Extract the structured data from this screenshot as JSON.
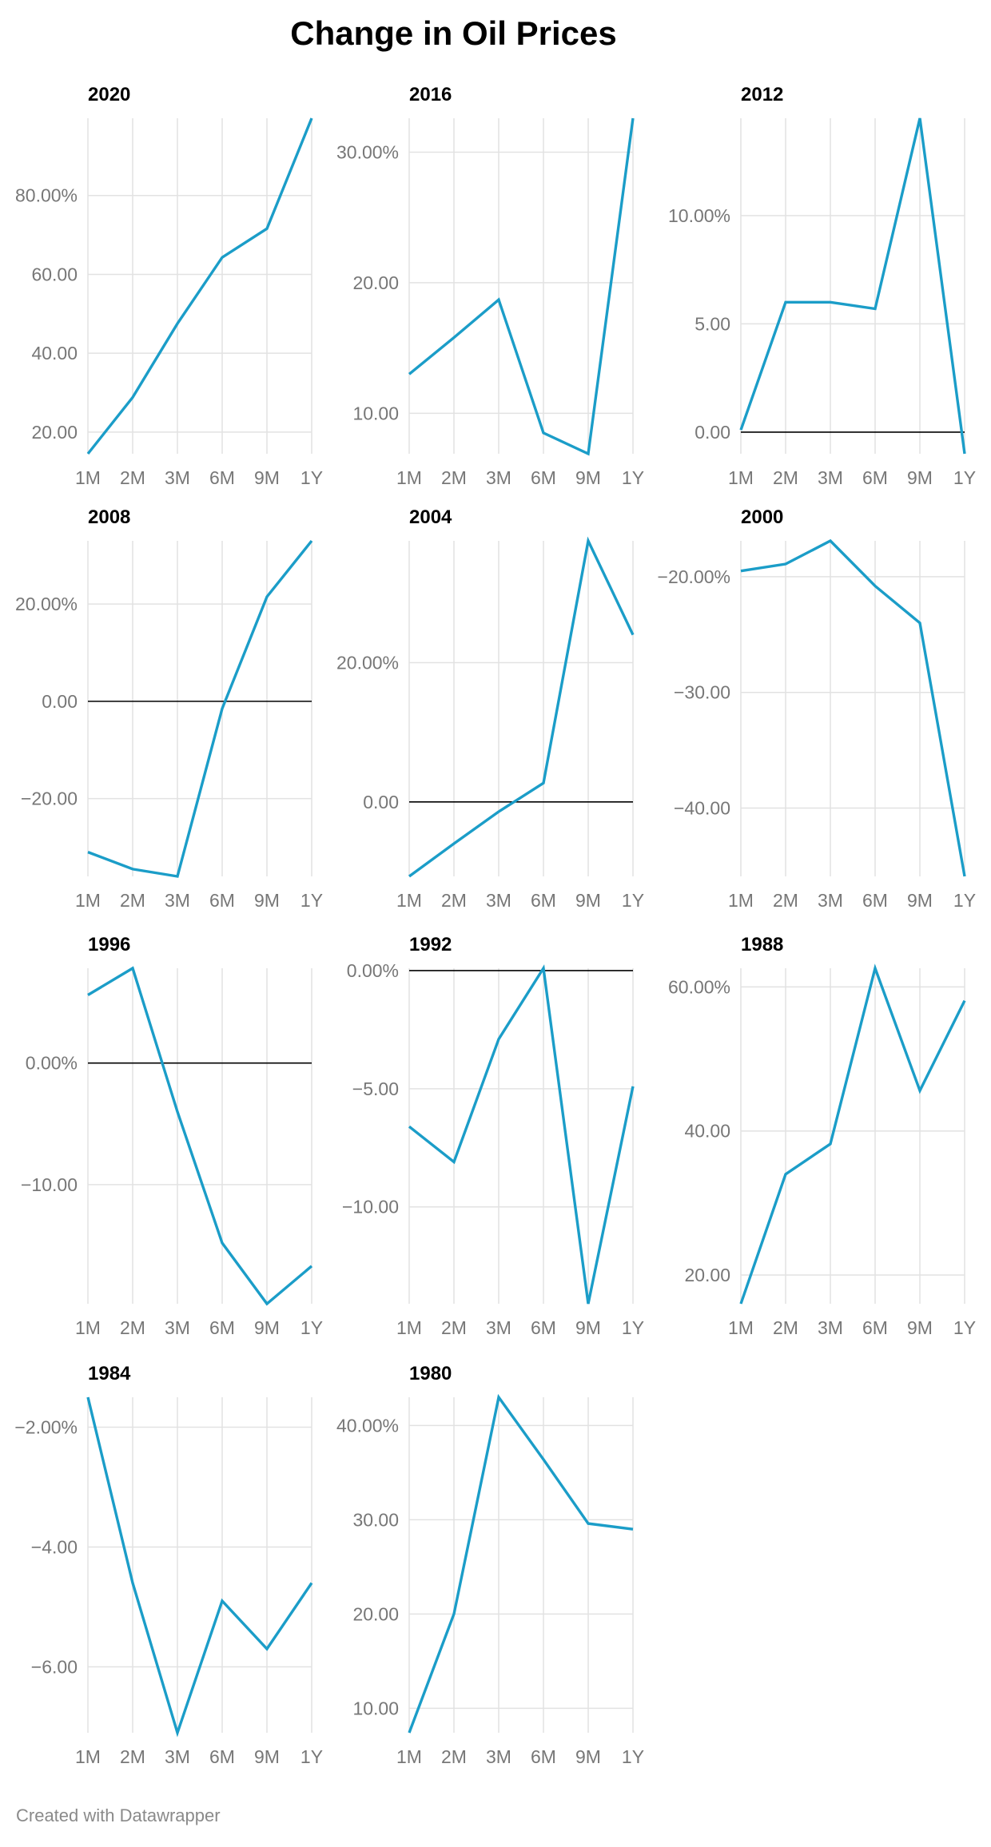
{
  "title": "Change in Oil Prices",
  "footer": "Created with Datawrapper",
  "colors": {
    "line": "#1b9dc8",
    "grid": "#e2e2e2",
    "zero": "#000000",
    "tick": "#777777"
  },
  "chart_data": [
    {
      "type": "line",
      "title": "2020",
      "categories": [
        "1M",
        "2M",
        "3M",
        "6M",
        "9M",
        "1Y"
      ],
      "values": [
        14.5,
        28.8,
        47.5,
        64.3,
        71.6,
        99.6
      ],
      "ylim": [
        14.5,
        99.6
      ],
      "yticks": [
        20,
        40,
        60,
        80
      ],
      "ytick_labels": [
        "20.00",
        "40.00",
        "60.00",
        "80.00%"
      ],
      "grid": true
    },
    {
      "type": "line",
      "title": "2016",
      "categories": [
        "1M",
        "2M",
        "3M",
        "6M",
        "9M",
        "1Y"
      ],
      "values": [
        13.0,
        15.8,
        18.7,
        8.5,
        6.9,
        32.6
      ],
      "ylim": [
        6.9,
        32.6
      ],
      "yticks": [
        10,
        20,
        30
      ],
      "ytick_labels": [
        "10.00",
        "20.00",
        "30.00%"
      ],
      "grid": true
    },
    {
      "type": "line",
      "title": "2012",
      "categories": [
        "1M",
        "2M",
        "3M",
        "6M",
        "9M",
        "1Y"
      ],
      "values": [
        0.1,
        6.0,
        6.0,
        5.7,
        14.5,
        -1.0
      ],
      "ylim": [
        -1.0,
        14.5
      ],
      "yticks": [
        0,
        5,
        10
      ],
      "ytick_labels": [
        "0.00",
        "5.00",
        "10.00%"
      ],
      "grid": true
    },
    {
      "type": "line",
      "title": "2008",
      "categories": [
        "1M",
        "2M",
        "3M",
        "6M",
        "9M",
        "1Y"
      ],
      "values": [
        -31.0,
        -34.5,
        -36.0,
        -1.5,
        21.5,
        33.0
      ],
      "ylim": [
        -36.0,
        33.0
      ],
      "yticks": [
        -20,
        0,
        20
      ],
      "ytick_labels": [
        "−20.00",
        "0.00",
        "20.00%"
      ],
      "grid": true
    },
    {
      "type": "line",
      "title": "2004",
      "categories": [
        "1M",
        "2M",
        "3M",
        "6M",
        "9M",
        "1Y"
      ],
      "values": [
        -10.7,
        -6.0,
        -1.4,
        2.7,
        37.5,
        24.0
      ],
      "ylim": [
        -10.7,
        37.5
      ],
      "yticks": [
        0,
        20
      ],
      "ytick_labels": [
        "0.00",
        "20.00%"
      ],
      "grid": true
    },
    {
      "type": "line",
      "title": "2000",
      "categories": [
        "1M",
        "2M",
        "3M",
        "6M",
        "9M",
        "1Y"
      ],
      "values": [
        -19.5,
        -18.9,
        -16.9,
        -20.8,
        -24.0,
        -45.9
      ],
      "ylim": [
        -45.9,
        -16.9
      ],
      "yticks": [
        -40,
        -30,
        -20
      ],
      "ytick_labels": [
        "−40.00",
        "−30.00",
        "−20.00%"
      ],
      "grid": true
    },
    {
      "type": "line",
      "title": "1996",
      "categories": [
        "1M",
        "2M",
        "3M",
        "6M",
        "9M",
        "1Y"
      ],
      "values": [
        5.6,
        7.8,
        -4.0,
        -14.8,
        -19.8,
        -16.7
      ],
      "ylim": [
        -19.8,
        7.8
      ],
      "yticks": [
        -10,
        0
      ],
      "ytick_labels": [
        "−10.00",
        "0.00%"
      ],
      "grid": true
    },
    {
      "type": "line",
      "title": "1992",
      "categories": [
        "1M",
        "2M",
        "3M",
        "6M",
        "9M",
        "1Y"
      ],
      "values": [
        -6.6,
        -8.1,
        -2.9,
        0.1,
        -14.1,
        -4.9
      ],
      "ylim": [
        -14.1,
        0.1
      ],
      "yticks": [
        -10,
        -5,
        0
      ],
      "ytick_labels": [
        "−10.00",
        "−5.00",
        "0.00%"
      ],
      "grid": true
    },
    {
      "type": "line",
      "title": "1988",
      "categories": [
        "1M",
        "2M",
        "3M",
        "6M",
        "9M",
        "1Y"
      ],
      "values": [
        16.0,
        34.0,
        38.2,
        62.6,
        45.6,
        58.1
      ],
      "ylim": [
        16.0,
        62.6
      ],
      "yticks": [
        20,
        40,
        60
      ],
      "ytick_labels": [
        "20.00",
        "40.00",
        "60.00%"
      ],
      "grid": true
    },
    {
      "type": "line",
      "title": "1984",
      "categories": [
        "1M",
        "2M",
        "3M",
        "6M",
        "9M",
        "1Y"
      ],
      "values": [
        -1.5,
        -4.6,
        -7.1,
        -4.9,
        -5.7,
        -4.6
      ],
      "ylim": [
        -7.1,
        -1.5
      ],
      "yticks": [
        -6,
        -4,
        -2
      ],
      "ytick_labels": [
        "−6.00",
        "−4.00",
        "−2.00%"
      ],
      "grid": true
    },
    {
      "type": "line",
      "title": "1980",
      "categories": [
        "1M",
        "2M",
        "3M",
        "6M",
        "9M",
        "1Y"
      ],
      "values": [
        7.4,
        20.0,
        43.0,
        36.4,
        29.6,
        29.0
      ],
      "ylim": [
        7.4,
        43.0
      ],
      "yticks": [
        10,
        20,
        30,
        40
      ],
      "ytick_labels": [
        "10.00",
        "20.00",
        "30.00",
        "40.00%"
      ],
      "grid": true
    }
  ]
}
